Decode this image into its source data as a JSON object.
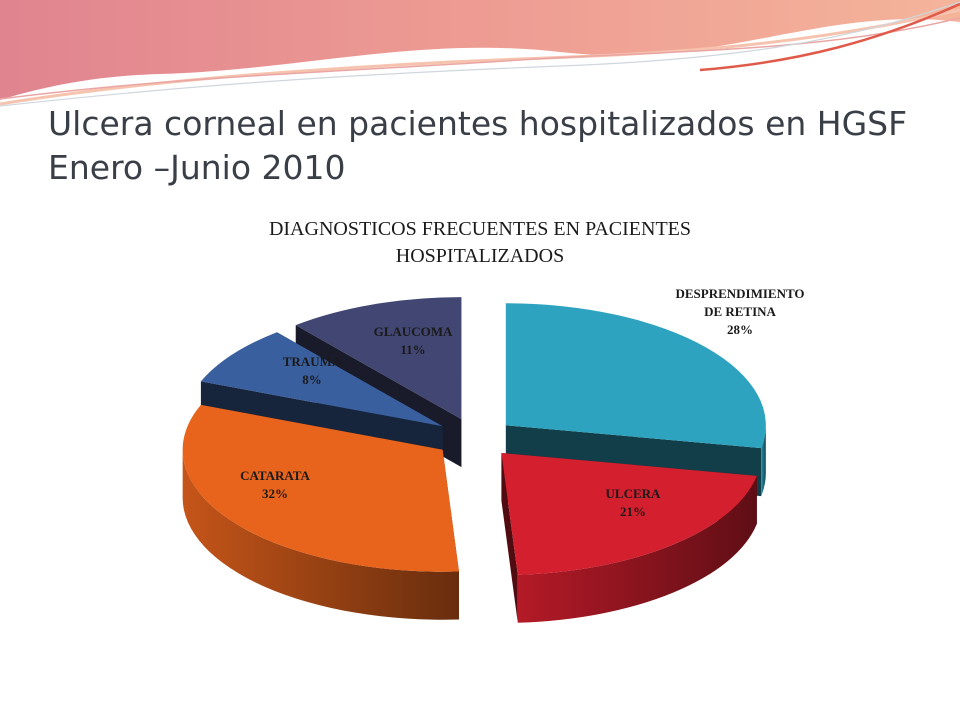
{
  "slide": {
    "title_line1": "Ulcera corneal en pacientes hospitalizados en HGSF",
    "title_line2": "Enero –Junio 2010"
  },
  "chart_data": {
    "type": "pie",
    "title_line1": "DIAGNOSTICOS FRECUENTES EN PACIENTES",
    "title_line2": "HOSPITALIZADOS",
    "exploded": true,
    "three_d": true,
    "slices": [
      {
        "name": "DESPRENDIMIENTO DE RETINA",
        "label_lines": [
          "DESPRENDIMIENTO",
          "DE RETINA"
        ],
        "value": 28,
        "value_label": "28%",
        "color": "#2ea3bf",
        "label_color": "#1a1a1a"
      },
      {
        "name": "ULCERA",
        "label_lines": [
          "ULCERA"
        ],
        "value": 21,
        "value_label": "21%",
        "color": "#d41f2e",
        "label_color": "#1a1a1a"
      },
      {
        "name": "CATARATA",
        "label_lines": [
          "CATARATA"
        ],
        "value": 32,
        "value_label": "32%",
        "color": "#e8641d",
        "label_color": "#1a1a1a"
      },
      {
        "name": "TRAUMA",
        "label_lines": [
          "TRAUMA"
        ],
        "value": 8,
        "value_label": "8%",
        "color": "#3a5f9e",
        "label_color": "#1a1a1a"
      },
      {
        "name": "GLAUCOMA",
        "label_lines": [
          "GLAUCOMA"
        ],
        "value": 11,
        "value_label": "11%",
        "color": "#424672",
        "label_color": "#1a1a1a"
      }
    ]
  }
}
